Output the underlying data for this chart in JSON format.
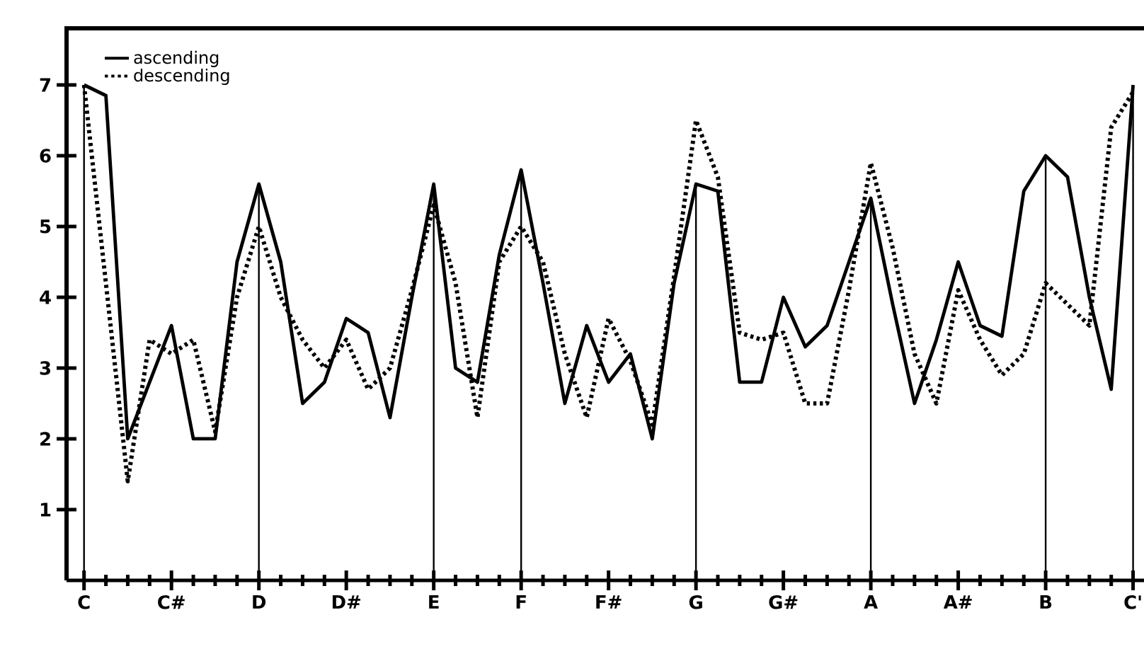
{
  "chart_data": {
    "type": "line",
    "categories": [
      "C",
      null,
      null,
      null,
      "C#",
      null,
      null,
      null,
      "D",
      null,
      null,
      null,
      "D#",
      null,
      null,
      null,
      "E",
      null,
      null,
      null,
      "F",
      null,
      null,
      null,
      "F#",
      null,
      null,
      null,
      "G",
      null,
      null,
      null,
      "G#",
      null,
      null,
      null,
      "A",
      null,
      null,
      null,
      "A#",
      null,
      null,
      null,
      "B",
      null,
      null,
      null,
      "C'"
    ],
    "series": [
      {
        "name": "ascending",
        "color": "#000000",
        "line_style": "solid",
        "values": [
          7.0,
          6.85,
          2.0,
          2.8,
          3.6,
          2.0,
          2.0,
          4.5,
          5.6,
          4.5,
          2.5,
          2.8,
          3.7,
          3.5,
          2.3,
          4.0,
          5.6,
          3.0,
          2.8,
          4.6,
          5.8,
          4.2,
          2.5,
          3.6,
          2.8,
          3.2,
          2.0,
          4.2,
          5.6,
          5.5,
          2.8,
          2.8,
          4.0,
          3.3,
          3.6,
          4.5,
          5.4,
          3.9,
          2.5,
          3.4,
          4.5,
          3.6,
          3.45,
          5.5,
          6.0,
          5.7,
          4.0,
          2.7,
          7.0
        ]
      },
      {
        "name": "descending",
        "color": "#000000",
        "line_style": "dotted",
        "values": [
          7.0,
          4.2,
          1.4,
          3.4,
          3.2,
          3.4,
          2.1,
          4.0,
          5.0,
          4.0,
          3.4,
          3.0,
          3.4,
          2.7,
          3.0,
          4.1,
          5.3,
          4.2,
          2.3,
          4.5,
          5.0,
          4.5,
          3.2,
          2.3,
          3.7,
          3.1,
          2.2,
          4.3,
          6.5,
          5.7,
          3.5,
          3.4,
          3.5,
          2.5,
          2.5,
          4.1,
          5.9,
          4.7,
          3.2,
          2.5,
          4.1,
          3.4,
          2.9,
          3.2,
          4.2,
          3.9,
          3.6,
          6.4,
          6.9
        ]
      }
    ],
    "ylim": [
      0,
      7.8
    ],
    "yticks": [
      1,
      2,
      3,
      4,
      5,
      6,
      7
    ],
    "ref_lines": [
      {
        "axis": "x",
        "value": "C"
      },
      {
        "axis": "x",
        "value": "D"
      },
      {
        "axis": "x",
        "value": "E"
      },
      {
        "axis": "x",
        "value": "F"
      },
      {
        "axis": "x",
        "value": "G"
      },
      {
        "axis": "x",
        "value": "A"
      },
      {
        "axis": "x",
        "value": "B"
      },
      {
        "axis": "x",
        "value": "C'"
      }
    ],
    "legend": "top left",
    "grid": false
  }
}
